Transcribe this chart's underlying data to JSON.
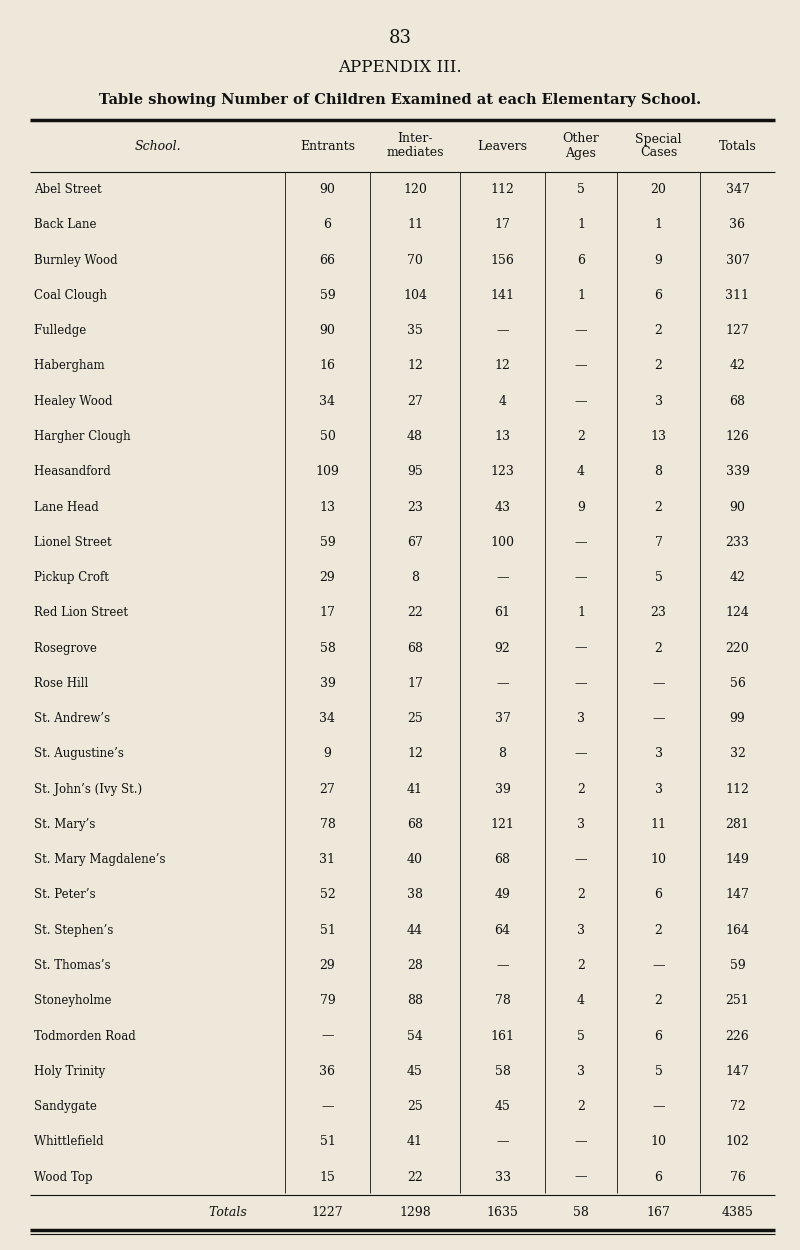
{
  "page_number": "83",
  "appendix_title": "APPENDIX III.",
  "table_title": "Table showing Number of Children Examined at each Elementary School.",
  "col_headers_line1": [
    "School.",
    "Entrants",
    "Inter-",
    "Leavers",
    "Other",
    "Special",
    "Totals"
  ],
  "col_headers_line2": [
    "",
    "",
    "mediates",
    "",
    "Ages",
    "Cases",
    ""
  ],
  "rows": [
    [
      "Abel Street               ",
      "90",
      "120",
      "112",
      "5",
      "20",
      "347"
    ],
    [
      "Back Lane               ",
      "6",
      "11",
      "17",
      "1",
      "1",
      "36"
    ],
    [
      "Burnley Wood           ",
      "66",
      "70",
      "156",
      "6",
      "9",
      "307"
    ],
    [
      "Coal Clough            ",
      "59",
      "104",
      "141",
      "1",
      "6",
      "311"
    ],
    [
      "Fulledge                 ",
      "90",
      "35",
      "—",
      "—",
      "2",
      "127"
    ],
    [
      "Habergham            ",
      "16",
      "12",
      "12",
      "—",
      "2",
      "42"
    ],
    [
      "Healey Wood           ",
      "34",
      "27",
      "4",
      "—",
      "3",
      "68"
    ],
    [
      "Hargher Clough         ",
      "50",
      "48",
      "13",
      "2",
      "13",
      "126"
    ],
    [
      "Heasandford            ",
      "109",
      "95",
      "123",
      "4",
      "8",
      "339"
    ],
    [
      "Lane Head                ",
      "13",
      "23",
      "43",
      "9",
      "2",
      "90"
    ],
    [
      "Lionel Street           ",
      "59",
      "67",
      "100",
      "—",
      "7",
      "233"
    ],
    [
      "Pickup Croft            ",
      "29",
      "8",
      "—",
      "—",
      "5",
      "42"
    ],
    [
      "Red Lion Street         ",
      "17",
      "22",
      "61",
      "1",
      "23",
      "124"
    ],
    [
      "Rosegrove              ",
      "58",
      "68",
      "92",
      "—",
      "2",
      "220"
    ],
    [
      "Rose Hill               ",
      "39",
      "17",
      "—",
      "—",
      "—",
      "56"
    ],
    [
      "St. Andrew’s           ",
      "34",
      "25",
      "37",
      "3",
      "—",
      "99"
    ],
    [
      "St. Augustine’s         ",
      "9",
      "12",
      "8",
      "—",
      "3",
      "32"
    ],
    [
      "St. John’s (Ivy St.)      ",
      "27",
      "41",
      "39",
      "2",
      "3",
      "112"
    ],
    [
      "St. Mary’s               ",
      "78",
      "68",
      "121",
      "3",
      "11",
      "281"
    ],
    [
      "St. Mary Magdalene’s    ",
      "31",
      "40",
      "68",
      "—",
      "10",
      "149"
    ],
    [
      "St. Peter’s               ",
      "52",
      "38",
      "49",
      "2",
      "6",
      "147"
    ],
    [
      "St. Stephen’s           ",
      "51",
      "44",
      "64",
      "3",
      "2",
      "164"
    ],
    [
      "St. Thomas’s           ",
      "29",
      "28",
      "—",
      "2",
      "—",
      "59"
    ],
    [
      "Stoneyholme            ",
      "79",
      "88",
      "78",
      "4",
      "2",
      "251"
    ],
    [
      "Todmorden Road        ",
      "—",
      "54",
      "161",
      "5",
      "6",
      "226"
    ],
    [
      "Holy Trinity            ",
      "36",
      "45",
      "58",
      "3",
      "5",
      "147"
    ],
    [
      "Sandygate              ",
      "—",
      "25",
      "45",
      "2",
      "—",
      "72"
    ],
    [
      "Whittlefield            ",
      "51",
      "41",
      "—",
      "—",
      "10",
      "102"
    ],
    [
      "Wood Top              ",
      "15",
      "22",
      "33",
      "—",
      "6",
      "76"
    ]
  ],
  "totals_row": [
    "Totals        ",
    "1227",
    "1298",
    "1635",
    "58",
    "167",
    "4385"
  ],
  "background_color": "#ede8da",
  "text_color": "#111111",
  "line_color": "#111111"
}
